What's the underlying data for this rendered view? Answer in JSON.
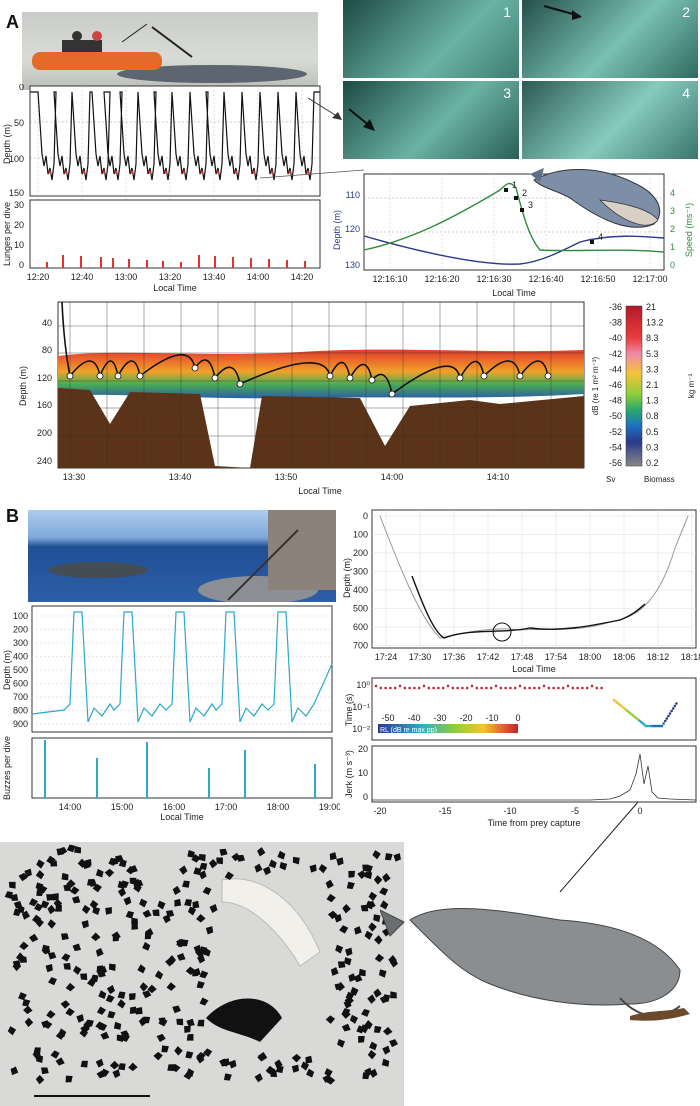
{
  "panels": {
    "a": "A",
    "b": "B"
  },
  "underwater_frames": [
    "1",
    "2",
    "3",
    "4"
  ],
  "a_depth": {
    "ylabel": "Depth (m)",
    "yticks": [
      "0",
      "50",
      "100",
      "150"
    ],
    "lunge_ylabel": "Lunges per dive",
    "lunge_yticks": [
      "30",
      "20",
      "10",
      "0"
    ],
    "xticks": [
      "12:20",
      "12:40",
      "13:00",
      "13:20",
      "13:40",
      "14:00",
      "14:20"
    ],
    "xlabel": "Local Time"
  },
  "a_zoom": {
    "ylabel_left": "Depth (m)",
    "ylabel_right": "Speed (ms⁻¹)",
    "yticks_left": [
      "110",
      "120",
      "130"
    ],
    "yticks_right": [
      "4",
      "3",
      "2",
      "1",
      "0"
    ],
    "xticks": [
      "12:16:10",
      "12:16:20",
      "12:16:30",
      "12:16:40",
      "12:16:50",
      "12:17:00"
    ],
    "xlabel": "Local Time",
    "markers": [
      "1",
      "2",
      "3",
      "4"
    ]
  },
  "a_echo": {
    "ylabel": "Depth (m)",
    "yticks": [
      "40",
      "80",
      "120",
      "160",
      "200",
      "240"
    ],
    "xticks": [
      "13:30",
      "13:40",
      "13:50",
      "14:00",
      "14:10"
    ],
    "xlabel": "Local Time",
    "cb_db_label": "dB (re 1 m² m⁻³)",
    "cb_bio_label": "kg m⁻³",
    "cb_db": [
      "-36",
      "-38",
      "-40",
      "-42",
      "-44",
      "-46",
      "-48",
      "-50",
      "-52",
      "-54",
      "-56"
    ],
    "cb_bio": [
      "21",
      "13.2",
      "8.3",
      "5.3",
      "3.3",
      "2.1",
      "1.3",
      "0.8",
      "0.5",
      "0.3",
      "0.2"
    ],
    "cb_foot_left": "Sv",
    "cb_foot_right": "Biomass"
  },
  "b_depth": {
    "ylabel": "Depth (m)",
    "yticks": [
      "100",
      "200",
      "300",
      "400",
      "500",
      "600",
      "700",
      "800",
      "900"
    ],
    "buzz_ylabel": "Buzzes per dive",
    "xticks": [
      "14:00",
      "15:00",
      "16:00",
      "17:00",
      "18:00",
      "19:00"
    ],
    "xlabel": "Local Time"
  },
  "b_zoom": {
    "ylabel": "Depth (m)",
    "yticks": [
      "0",
      "100",
      "200",
      "300",
      "400",
      "500",
      "600",
      "700"
    ],
    "xticks": [
      "17:24",
      "17:30",
      "17:36",
      "17:42",
      "17:48",
      "17:54",
      "18:00",
      "18:06",
      "18:12",
      "18:18"
    ],
    "xlabel": "Local Time"
  },
  "b_time": {
    "ylabel": "Time (s)",
    "yticks": [
      "10⁰",
      "10⁻¹",
      "10⁻²"
    ],
    "rl_label": "RL (dB re max pp)",
    "rl_ticks": [
      "-50",
      "-40",
      "-30",
      "-20",
      "-10",
      "0"
    ]
  },
  "b_jerk": {
    "ylabel": "Jerk (m s⁻³)",
    "yticks": [
      "20",
      "10",
      "0"
    ],
    "xticks": [
      "-20",
      "-15",
      "-10",
      "-5",
      "0"
    ],
    "xlabel": "Time from prey capture"
  },
  "colors": {
    "depth_line": "#111111",
    "speed_line": "#2e8b3a",
    "zoom_depth": "#2a3a8c",
    "buzz": "#2aa9c9",
    "lunge": "#e0342c",
    "seabed": "#5b3318"
  }
}
